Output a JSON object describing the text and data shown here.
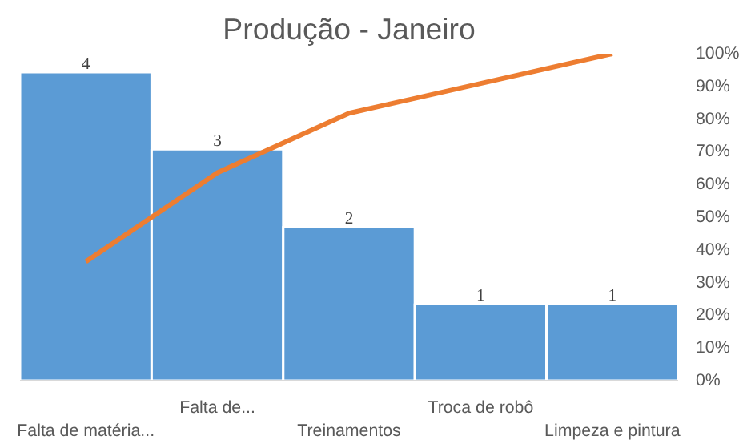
{
  "chart_data": {
    "type": "bar",
    "title": "Produção - Janeiro",
    "categories": [
      "Falta de matéria...",
      "Falta de...",
      "Treinamentos",
      "Troca de robô",
      "Limpeza e pintura"
    ],
    "series": [
      {
        "color": "#5b9bd5",
        "values": [
          4,
          3,
          2,
          1,
          1
        ],
        "value_labels": [
          "4",
          "3",
          "2",
          "1",
          "1"
        ]
      },
      {
        "type": "line",
        "color": "#ed7d31",
        "axis": "y2",
        "values": [
          36.4,
          63.6,
          81.8,
          90.9,
          100
        ]
      }
    ],
    "y2lim": [
      0,
      100
    ],
    "y2ticks": [
      {
        "value": 0,
        "label": "0%"
      },
      {
        "value": 10,
        "label": "10%"
      },
      {
        "value": 20,
        "label": "20%"
      },
      {
        "value": 30,
        "label": "30%"
      },
      {
        "value": 40,
        "label": "40%"
      },
      {
        "value": 50,
        "label": "50%"
      },
      {
        "value": 60,
        "label": "60%"
      },
      {
        "value": 70,
        "label": "70%"
      },
      {
        "value": 80,
        "label": "80%"
      },
      {
        "value": 90,
        "label": "90%"
      },
      {
        "value": 100,
        "label": "100%"
      }
    ],
    "grid": false
  }
}
